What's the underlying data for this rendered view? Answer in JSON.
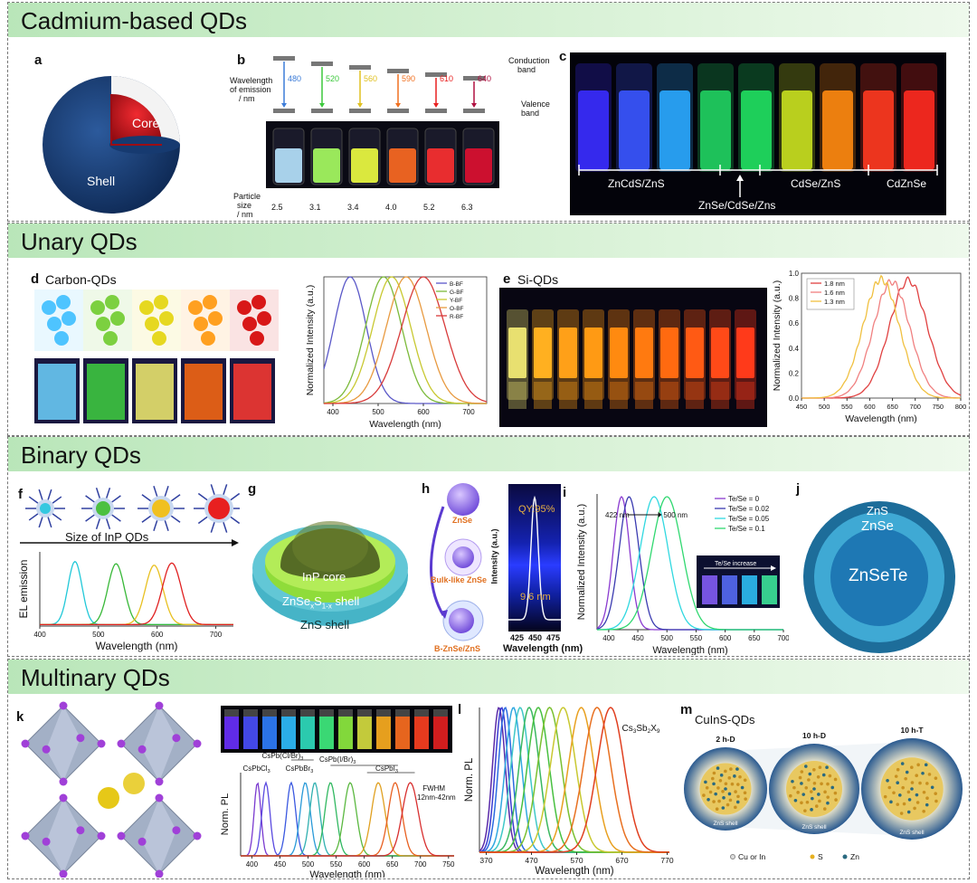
{
  "sections": {
    "cadmium": "Cadmium-based QDs",
    "unary": "Unary QDs",
    "binary": "Binary QDs",
    "multinary": "Multinary QDs"
  },
  "panels": [
    "a",
    "b",
    "c",
    "d",
    "e",
    "f",
    "g",
    "h",
    "i",
    "j",
    "k",
    "l",
    "m"
  ],
  "a": {
    "core": "Core",
    "shell": "Shell"
  },
  "b": {
    "emission_label": [
      "Wavelength",
      "of emission",
      "/ nm"
    ],
    "conduction": [
      "Conduction",
      "band"
    ],
    "valence": [
      "Valence",
      "band"
    ],
    "wavelengths": [
      "480",
      "520",
      "560",
      "590",
      "610",
      "640"
    ],
    "size_label": [
      "Particle",
      "size",
      "/ nm"
    ],
    "sizes": [
      "2.5",
      "3.1",
      "3.4",
      "4.0",
      "5.2",
      "6.3"
    ]
  },
  "c": {
    "groups": [
      "ZnCdS/ZnS",
      "CdSe/ZnS",
      "CdZnSe"
    ],
    "arrow_label": "ZnSe/CdSe/Zns"
  },
  "d": {
    "title": "Carbon-QDs",
    "legend": [
      "B-BF",
      "G-BF",
      "Y-BF",
      "O-BF",
      "R-BF"
    ],
    "ylabel": "Normalized Intensity (a.u.)",
    "xlabel": "Wavelength (nm)",
    "xticks": [
      "400",
      "500",
      "600",
      "700"
    ]
  },
  "e": {
    "title": "Si-QDs",
    "legend": [
      "1.8 nm",
      "1.6 nm",
      "1.3 nm"
    ],
    "ylabel": "Normalized Intensity (a.u.)",
    "xlabel": "Wavelength (nm)",
    "xticks": [
      "450",
      "500",
      "550",
      "600",
      "650",
      "700",
      "750",
      "800"
    ],
    "yticks": [
      "0.0",
      "0.2",
      "0.4",
      "0.6",
      "0.8",
      "1.0"
    ]
  },
  "f": {
    "size_label": "Size of InP QDs",
    "ylabel": "EL emission",
    "xlabel": "Wavelength (nm)",
    "xticks": [
      "400",
      "500",
      "600",
      "700"
    ]
  },
  "g": {
    "core": "InP core",
    "shell1": "ZnSe",
    "shell1_sub": "x",
    "shell1_mid": "S",
    "shell1_sub2": "1-x",
    "shell1_end": " shell",
    "shell2": "ZnS shell"
  },
  "h": {
    "s1": "ZnSe",
    "s2": "Bulk-like ZnSe",
    "s3": "B-ZnSe/ZnS",
    "qy": "QY:95%",
    "fwhm": "9.6 nm",
    "ylabel": "Intensity (a.u.)",
    "xlabel": "Wavelength (nm)",
    "xticks": [
      "425",
      "450",
      "475"
    ]
  },
  "i": {
    "legend": [
      "Te/Se = 0",
      "Te/Se = 0.02",
      "Te/Se = 0.05",
      "Te/Se = 0.1"
    ],
    "from": "422 nm",
    "to": "500 nm",
    "inset": "Te/Se increase",
    "ylabel": "Normalized Intensity (a.u.)",
    "xlabel": "Wavelength (nm)",
    "xticks": [
      "400",
      "450",
      "500",
      "550",
      "600",
      "650",
      "700"
    ]
  },
  "j": {
    "outer": "ZnS",
    "mid": "ZnSe",
    "core": "ZnSeTe"
  },
  "k": {
    "labels": [
      "CsPbCl",
      "CsPb(Cl/Br)",
      "CsPbBr",
      "CsPb(I/Br)",
      "CsPbI"
    ],
    "subs": [
      "3",
      "3",
      "3",
      "3",
      "3"
    ],
    "fwhm": [
      "FWHM",
      "12nm-42nm"
    ],
    "ylabel": "Norm. PL",
    "xlabel": "Wavelength (nm)",
    "xticks": [
      "400",
      "450",
      "500",
      "550",
      "600",
      "650",
      "700",
      "750"
    ]
  },
  "l": {
    "label_pre": "Cs",
    "label_3": "3",
    "label_mid": "Sb",
    "label_2": "2",
    "label_end": "X",
    "label_9": "9",
    "ylabel": "Norm. PL",
    "xlabel": "Wavelength (nm)",
    "xticks": [
      "370",
      "470",
      "570",
      "670",
      "770"
    ]
  },
  "m": {
    "title": "CuInS-QDs",
    "dots": [
      "2 h-D",
      "10 h-D",
      "10 h-T"
    ],
    "shell": "ZnS shell",
    "legend": [
      "Cu or In",
      "S",
      "Zn"
    ]
  },
  "colors": {
    "head_green": "#c6ebc4",
    "shell_blue": "#1b3f7a",
    "core_red": "#d0101a"
  }
}
